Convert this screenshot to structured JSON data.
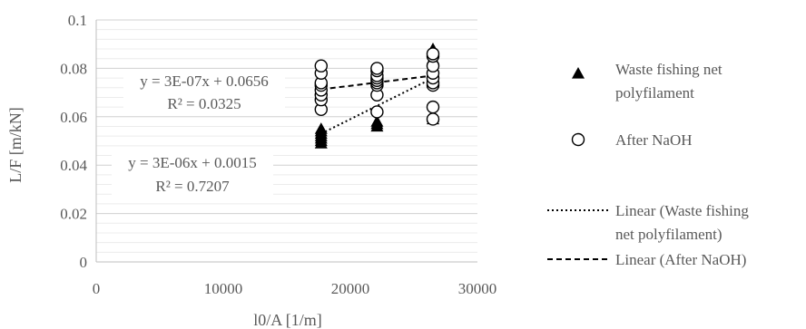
{
  "chart_data": {
    "type": "scatter",
    "xlabel": "l0/A [1/m]",
    "ylabel": "L/F [m/kN]",
    "xlim": [
      0,
      30000
    ],
    "ylim": [
      0,
      0.1
    ],
    "x_ticks": [
      "0",
      "10000",
      "20000",
      "30000"
    ],
    "y_ticks": [
      "0",
      "0.02",
      "0.04",
      "0.06",
      "0.08",
      "0.1"
    ],
    "grid": "horizontal major and minor",
    "legend_position": "right",
    "series": [
      {
        "name": "Waste fishing net polyfilament",
        "marker": "filled-triangle",
        "color": "#000000",
        "points": [
          [
            17700,
            0.049
          ],
          [
            17700,
            0.05
          ],
          [
            17700,
            0.051
          ],
          [
            17700,
            0.052
          ],
          [
            17700,
            0.053
          ],
          [
            17700,
            0.054
          ],
          [
            17700,
            0.055
          ],
          [
            22100,
            0.056
          ],
          [
            22100,
            0.057
          ],
          [
            22100,
            0.058
          ],
          [
            26500,
            0.059
          ],
          [
            26500,
            0.06
          ],
          [
            26500,
            0.074
          ],
          [
            26500,
            0.078
          ],
          [
            26500,
            0.084
          ],
          [
            26500,
            0.088
          ]
        ]
      },
      {
        "name": "After NaOH",
        "marker": "open-circle",
        "color": "#000000",
        "points": [
          [
            17700,
            0.063
          ],
          [
            17700,
            0.067
          ],
          [
            17700,
            0.069
          ],
          [
            17700,
            0.071
          ],
          [
            17700,
            0.073
          ],
          [
            17700,
            0.074
          ],
          [
            17700,
            0.078
          ],
          [
            17700,
            0.081
          ],
          [
            22100,
            0.062
          ],
          [
            22100,
            0.069
          ],
          [
            22100,
            0.073
          ],
          [
            22100,
            0.074
          ],
          [
            22100,
            0.075
          ],
          [
            22100,
            0.076
          ],
          [
            22100,
            0.077
          ],
          [
            22100,
            0.079
          ],
          [
            22100,
            0.08
          ],
          [
            26500,
            0.059
          ],
          [
            26500,
            0.064
          ],
          [
            26500,
            0.073
          ],
          [
            26500,
            0.074
          ],
          [
            26500,
            0.076
          ],
          [
            26500,
            0.078
          ],
          [
            26500,
            0.081
          ],
          [
            26500,
            0.085
          ],
          [
            26500,
            0.086
          ]
        ]
      }
    ],
    "trendlines": [
      {
        "name": "Linear (Waste fishing net polyfilament)",
        "style": "dotted",
        "x_range": [
          17700,
          26500
        ],
        "y_range": [
          0.053,
          0.076
        ],
        "equation": "y = 3E-06x + 0.0015",
        "r2": "R² = 0.7207"
      },
      {
        "name": "Linear (After NaOH)",
        "style": "dashed",
        "x_range": [
          17700,
          26500
        ],
        "y_range": [
          0.0713,
          0.077
        ],
        "equation": "y = 3E-07x + 0.0656",
        "r2": "R² = 0.0325"
      }
    ],
    "legend": [
      {
        "label_lines": [
          "Waste fishing net",
          "polyfilament"
        ],
        "symbol": "filled-triangle"
      },
      {
        "label_lines": [
          "After NaOH"
        ],
        "symbol": "open-circle"
      },
      {
        "label_lines": [
          "Linear (Waste fishing",
          "net polyfilament)"
        ],
        "symbol": "dotted-line"
      },
      {
        "label_lines": [
          "Linear (After NaOH)"
        ],
        "symbol": "dashed-line"
      }
    ]
  }
}
